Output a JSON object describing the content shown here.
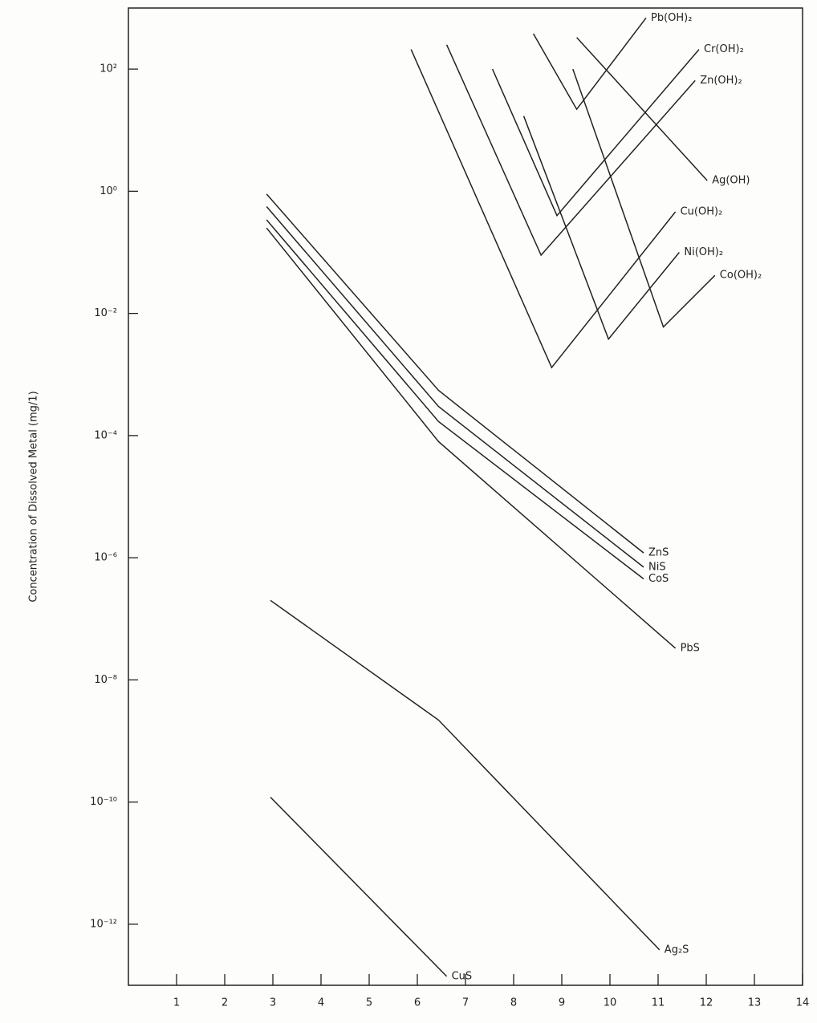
{
  "chart_data": {
    "type": "line",
    "y_label": "Concentration of Dissolved Metal (mg/1)",
    "log_y": true,
    "color": "#222",
    "xlim": [
      0,
      14
    ],
    "xticks": [
      1,
      2,
      3,
      4,
      5,
      6,
      7,
      8,
      9,
      10,
      11,
      12,
      13,
      14
    ],
    "ylim": [
      1e-13,
      1000
    ],
    "yticks": [
      {
        "value": 100,
        "label": "10²"
      },
      {
        "value": 1,
        "label": "10⁰"
      },
      {
        "value": 0.01,
        "label": "10⁻²"
      },
      {
        "value": 0.0001,
        "label": "10⁻⁴"
      },
      {
        "value": 1e-06,
        "label": "10⁻⁶"
      },
      {
        "value": 1e-08,
        "label": "10⁻⁸"
      },
      {
        "value": 1e-10,
        "label": "10⁻¹⁰"
      },
      {
        "value": 1e-12,
        "label": "10⁻¹²"
      }
    ],
    "series": [
      {
        "name": "Pb(OH)₂",
        "x": [
          8.41,
          9.31,
          10.75
        ],
        "values": [
          380,
          22,
          690
        ]
      },
      {
        "name": "Cr(OH)₂",
        "x": [
          7.56,
          8.9,
          11.85
        ],
        "values": [
          100,
          0.4,
          210
        ]
      },
      {
        "name": "Zn(OH)₂",
        "x": [
          6.61,
          8.57,
          11.77
        ],
        "values": [
          250,
          0.09,
          65
        ]
      },
      {
        "name": "Ag(OH)",
        "x": [
          9.31,
          12.02
        ],
        "values": [
          330,
          1.5
        ]
      },
      {
        "name": "Cu(OH)₂",
        "x": [
          5.87,
          8.79,
          11.36
        ],
        "values": [
          210,
          0.0013,
          0.46
        ]
      },
      {
        "name": "Ni(OH)₂",
        "x": [
          8.21,
          9.97,
          11.44
        ],
        "values": [
          17,
          0.0038,
          0.1
        ]
      },
      {
        "name": "Co(OH)₂",
        "x": [
          9.23,
          11.11,
          12.18
        ],
        "values": [
          100,
          0.006,
          0.042
        ]
      },
      {
        "name": "ZnS",
        "x": [
          2.87,
          6.44,
          10.7
        ],
        "values": [
          0.9,
          0.00055,
          1.2e-06
        ]
      },
      {
        "name": "NiS",
        "x": [
          2.87,
          6.44,
          10.7
        ],
        "values": [
          0.56,
          0.0003,
          7e-07
        ]
      },
      {
        "name": "CoS",
        "x": [
          2.87,
          6.44,
          10.7
        ],
        "values": [
          0.34,
          0.00017,
          4.5e-07
        ]
      },
      {
        "name": "PbS",
        "x": [
          2.87,
          6.44,
          11.36
        ],
        "values": [
          0.25,
          8e-05,
          3.3e-08
        ]
      },
      {
        "name": "Ag₂S",
        "x": [
          2.95,
          6.44,
          11.03
        ],
        "values": [
          2e-07,
          2.2e-09,
          3.8e-13
        ]
      },
      {
        "name": "CuS",
        "x": [
          2.95,
          6.61
        ],
        "values": [
          1.2e-10,
          1.4e-13
        ]
      }
    ]
  }
}
